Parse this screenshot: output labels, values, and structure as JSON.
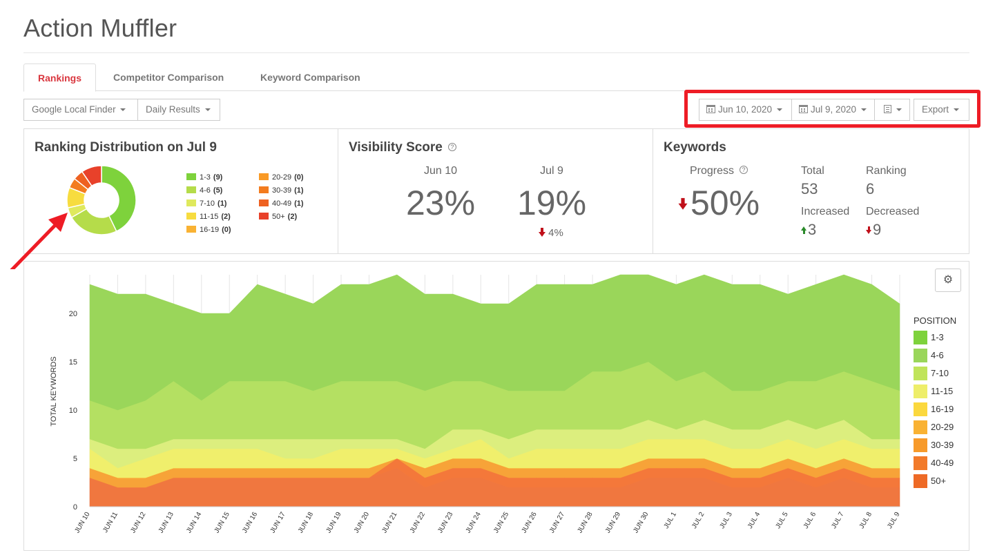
{
  "page_title": "Action Muffler",
  "tabs": [
    {
      "label": "Rankings",
      "active": true
    },
    {
      "label": "Competitor Comparison",
      "active": false
    },
    {
      "label": "Keyword Comparison",
      "active": false
    }
  ],
  "toolbar": {
    "finder_label": "Google Local Finder",
    "results_label": "Daily Results",
    "start_date": "Jun 10, 2020",
    "end_date": "Jul 9, 2020",
    "export_label": "Export"
  },
  "ranking_distribution": {
    "title": "Ranking Distribution on Jul 9",
    "items": [
      {
        "label": "1-3",
        "count": "(9)",
        "value": 9,
        "color": "#7ed23c"
      },
      {
        "label": "4-6",
        "count": "(5)",
        "value": 5,
        "color": "#b5dc4a"
      },
      {
        "label": "7-10",
        "count": "(1)",
        "value": 1,
        "color": "#dfe95d"
      },
      {
        "label": "11-15",
        "count": "(2)",
        "value": 2,
        "color": "#f7dc3f"
      },
      {
        "label": "16-19",
        "count": "(0)",
        "value": 0,
        "color": "#f9b233"
      },
      {
        "label": "20-29",
        "count": "(0)",
        "value": 0,
        "color": "#f99a26"
      },
      {
        "label": "30-39",
        "count": "(1)",
        "value": 1,
        "color": "#f37c1f"
      },
      {
        "label": "40-49",
        "count": "(1)",
        "value": 1,
        "color": "#ee6121"
      },
      {
        "label": "50+",
        "count": "(2)",
        "value": 2,
        "color": "#e8412a"
      }
    ]
  },
  "visibility": {
    "title": "Visibility Score",
    "help": "?",
    "start_label": "Jun 10",
    "start_value": "23%",
    "end_label": "Jul 9",
    "end_value": "19%",
    "change": "4%"
  },
  "keywords": {
    "title": "Keywords",
    "progress_label": "Progress",
    "help": "?",
    "progress_value": "50%",
    "total_label": "Total",
    "total_value": "53",
    "ranking_label": "Ranking",
    "ranking_value": "6",
    "increased_label": "Increased",
    "increased_value": "3",
    "decreased_label": "Decreased",
    "decreased_value": "9"
  },
  "chart_data": {
    "type": "area",
    "stacked": true,
    "ylabel": "TOTAL KEYWORDS",
    "ylim": [
      0,
      24
    ],
    "yticks": [
      0,
      5,
      10,
      15,
      20
    ],
    "legend_title": "POSITION",
    "legend_position": "right",
    "x": [
      "JUN 10",
      "JUN 11",
      "JUN 12",
      "JUN 13",
      "JUN 14",
      "JUN 15",
      "JUN 16",
      "JUN 17",
      "JUN 18",
      "JUN 19",
      "JUN 20",
      "JUN 21",
      "JUN 22",
      "JUN 23",
      "JUN 24",
      "JUN 25",
      "JUN 26",
      "JUN 27",
      "JUN 28",
      "JUN 29",
      "JUN 30",
      "JUL 1",
      "JUL 2",
      "JUL 3",
      "JUL 4",
      "JUL 5",
      "JUL 6",
      "JUL 7",
      "JUL 8",
      "JUL 9"
    ],
    "series": [
      {
        "name": "50+",
        "color": "#f0773f",
        "values": [
          3,
          2,
          2,
          3,
          3,
          3,
          3,
          3,
          3,
          3,
          3,
          4,
          2,
          3,
          3,
          2,
          2,
          2,
          2,
          2,
          3,
          3,
          3,
          2,
          2,
          3,
          2,
          3,
          2,
          2
        ]
      },
      {
        "name": "40-49",
        "color": "#f4783a",
        "values": [
          0,
          0,
          0,
          0,
          0,
          0,
          0,
          0,
          0,
          0,
          0,
          1,
          1,
          1,
          1,
          1,
          1,
          1,
          1,
          1,
          1,
          1,
          1,
          1,
          1,
          1,
          1,
          1,
          1,
          1
        ]
      },
      {
        "name": "30-39",
        "color": "#f7a338",
        "values": [
          1,
          1,
          1,
          1,
          1,
          1,
          1,
          1,
          1,
          1,
          1,
          0,
          1,
          1,
          1,
          1,
          1,
          1,
          1,
          1,
          1,
          1,
          1,
          1,
          1,
          1,
          1,
          1,
          1,
          1
        ]
      },
      {
        "name": "20-29",
        "color": "#f9b233",
        "values": [
          0,
          0,
          0,
          0,
          0,
          0,
          0,
          0,
          0,
          0,
          0,
          0,
          0,
          0,
          0,
          0,
          0,
          0,
          0,
          0,
          0,
          0,
          0,
          0,
          0,
          0,
          0,
          0,
          0,
          0
        ]
      },
      {
        "name": "16-19",
        "color": "#fbd83e",
        "values": [
          0,
          0,
          0,
          0,
          0,
          0,
          0,
          0,
          0,
          0,
          0,
          0,
          0,
          0,
          0,
          0,
          0,
          0,
          0,
          0,
          0,
          0,
          0,
          0,
          0,
          0,
          0,
          0,
          0,
          0
        ]
      },
      {
        "name": "11-15",
        "color": "#f0ef6c",
        "values": [
          2,
          1,
          2,
          2,
          2,
          2,
          2,
          1,
          1,
          2,
          2,
          1,
          1,
          1,
          2,
          1,
          2,
          2,
          2,
          2,
          2,
          2,
          2,
          2,
          2,
          2,
          2,
          2,
          2,
          2
        ]
      },
      {
        "name": "7-10",
        "color": "#dcee7e",
        "values": [
          1,
          2,
          1,
          1,
          1,
          1,
          1,
          2,
          2,
          1,
          1,
          1,
          1,
          2,
          1,
          2,
          2,
          2,
          2,
          2,
          2,
          1,
          2,
          2,
          2,
          2,
          2,
          2,
          1,
          1
        ]
      },
      {
        "name": "4-6",
        "color": "#b4e062",
        "values": [
          4,
          4,
          5,
          6,
          4,
          6,
          6,
          6,
          5,
          6,
          6,
          6,
          6,
          5,
          5,
          5,
          4,
          4,
          6,
          6,
          6,
          5,
          5,
          4,
          4,
          4,
          5,
          5,
          6,
          5
        ]
      },
      {
        "name": "1-3",
        "color": "#9ad65a",
        "values": [
          12,
          12,
          11,
          8,
          9,
          7,
          10,
          9,
          9,
          10,
          10,
          11,
          10,
          9,
          8,
          9,
          11,
          11,
          9,
          10,
          9,
          10,
          10,
          11,
          11,
          9,
          10,
          10,
          10,
          9
        ]
      }
    ]
  },
  "icons": {
    "gear": "gear-icon"
  }
}
